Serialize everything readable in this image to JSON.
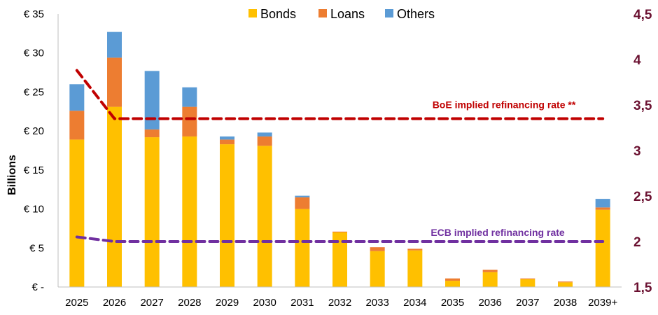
{
  "chart_data": {
    "type": "bar",
    "stacked": true,
    "categories": [
      "2025",
      "2026",
      "2027",
      "2028",
      "2029",
      "2030",
      "2031",
      "2032",
      "2033",
      "2034",
      "2035",
      "2036",
      "2037",
      "2038",
      "2039+"
    ],
    "series": [
      {
        "name": "Bonds",
        "color": "#ffc000",
        "values": [
          18.9,
          23.1,
          19.2,
          19.3,
          18.3,
          18.1,
          10.0,
          7.0,
          4.6,
          4.7,
          0.8,
          1.9,
          1.0,
          0.6,
          9.9
        ]
      },
      {
        "name": "Loans",
        "color": "#ed7d31",
        "values": [
          3.7,
          6.3,
          1.0,
          3.8,
          0.6,
          1.2,
          1.5,
          0.1,
          0.5,
          0.2,
          0.3,
          0.3,
          0.1,
          0.1,
          0.3
        ]
      },
      {
        "name": "Others",
        "color": "#5b9bd5",
        "values": [
          3.4,
          3.3,
          7.5,
          2.5,
          0.4,
          0.5,
          0.2,
          0.0,
          0.0,
          0.0,
          0.0,
          0.0,
          0.0,
          0.0,
          1.1
        ]
      }
    ],
    "lines": [
      {
        "name": "BoE implied refinancing rate **",
        "color": "#c00000",
        "axis": "right",
        "values": [
          3.88,
          3.35,
          3.35,
          3.35,
          3.35,
          3.35,
          3.35,
          3.35,
          3.35,
          3.35,
          3.35,
          3.35,
          3.35,
          3.35,
          3.35
        ]
      },
      {
        "name": "ECB implied refinancing rate",
        "color": "#7030a0",
        "axis": "right",
        "values": [
          2.05,
          2.0,
          2.0,
          2.0,
          2.0,
          2.0,
          2.0,
          2.0,
          2.0,
          2.0,
          2.0,
          2.0,
          2.0,
          2.0,
          2.0
        ]
      }
    ],
    "ylabel": "Billions",
    "ylim": [
      0,
      35
    ],
    "yticks": [
      0,
      5,
      10,
      15,
      20,
      25,
      30,
      35
    ],
    "ytick_labels": [
      "€ -",
      "€ 5",
      "€ 10",
      "€ 15",
      "€ 20",
      "€ 25",
      "€ 30",
      "€ 35"
    ],
    "y2lim": [
      1.5,
      4.5
    ],
    "y2ticks": [
      1.5,
      2,
      2.5,
      3,
      3.5,
      4,
      4.5
    ],
    "y2tick_labels": [
      "1,5",
      "2",
      "2,5",
      "3",
      "3,5",
      "4",
      "4,5"
    ],
    "legend": {
      "position": "top",
      "entries": [
        "Bonds",
        "Loans",
        "Others"
      ]
    },
    "annotations": [
      {
        "text": "BoE implied refinancing rate **",
        "color": "#c00000"
      },
      {
        "text": "ECB implied refinancing rate",
        "color": "#7030a0"
      }
    ],
    "grid": false
  }
}
